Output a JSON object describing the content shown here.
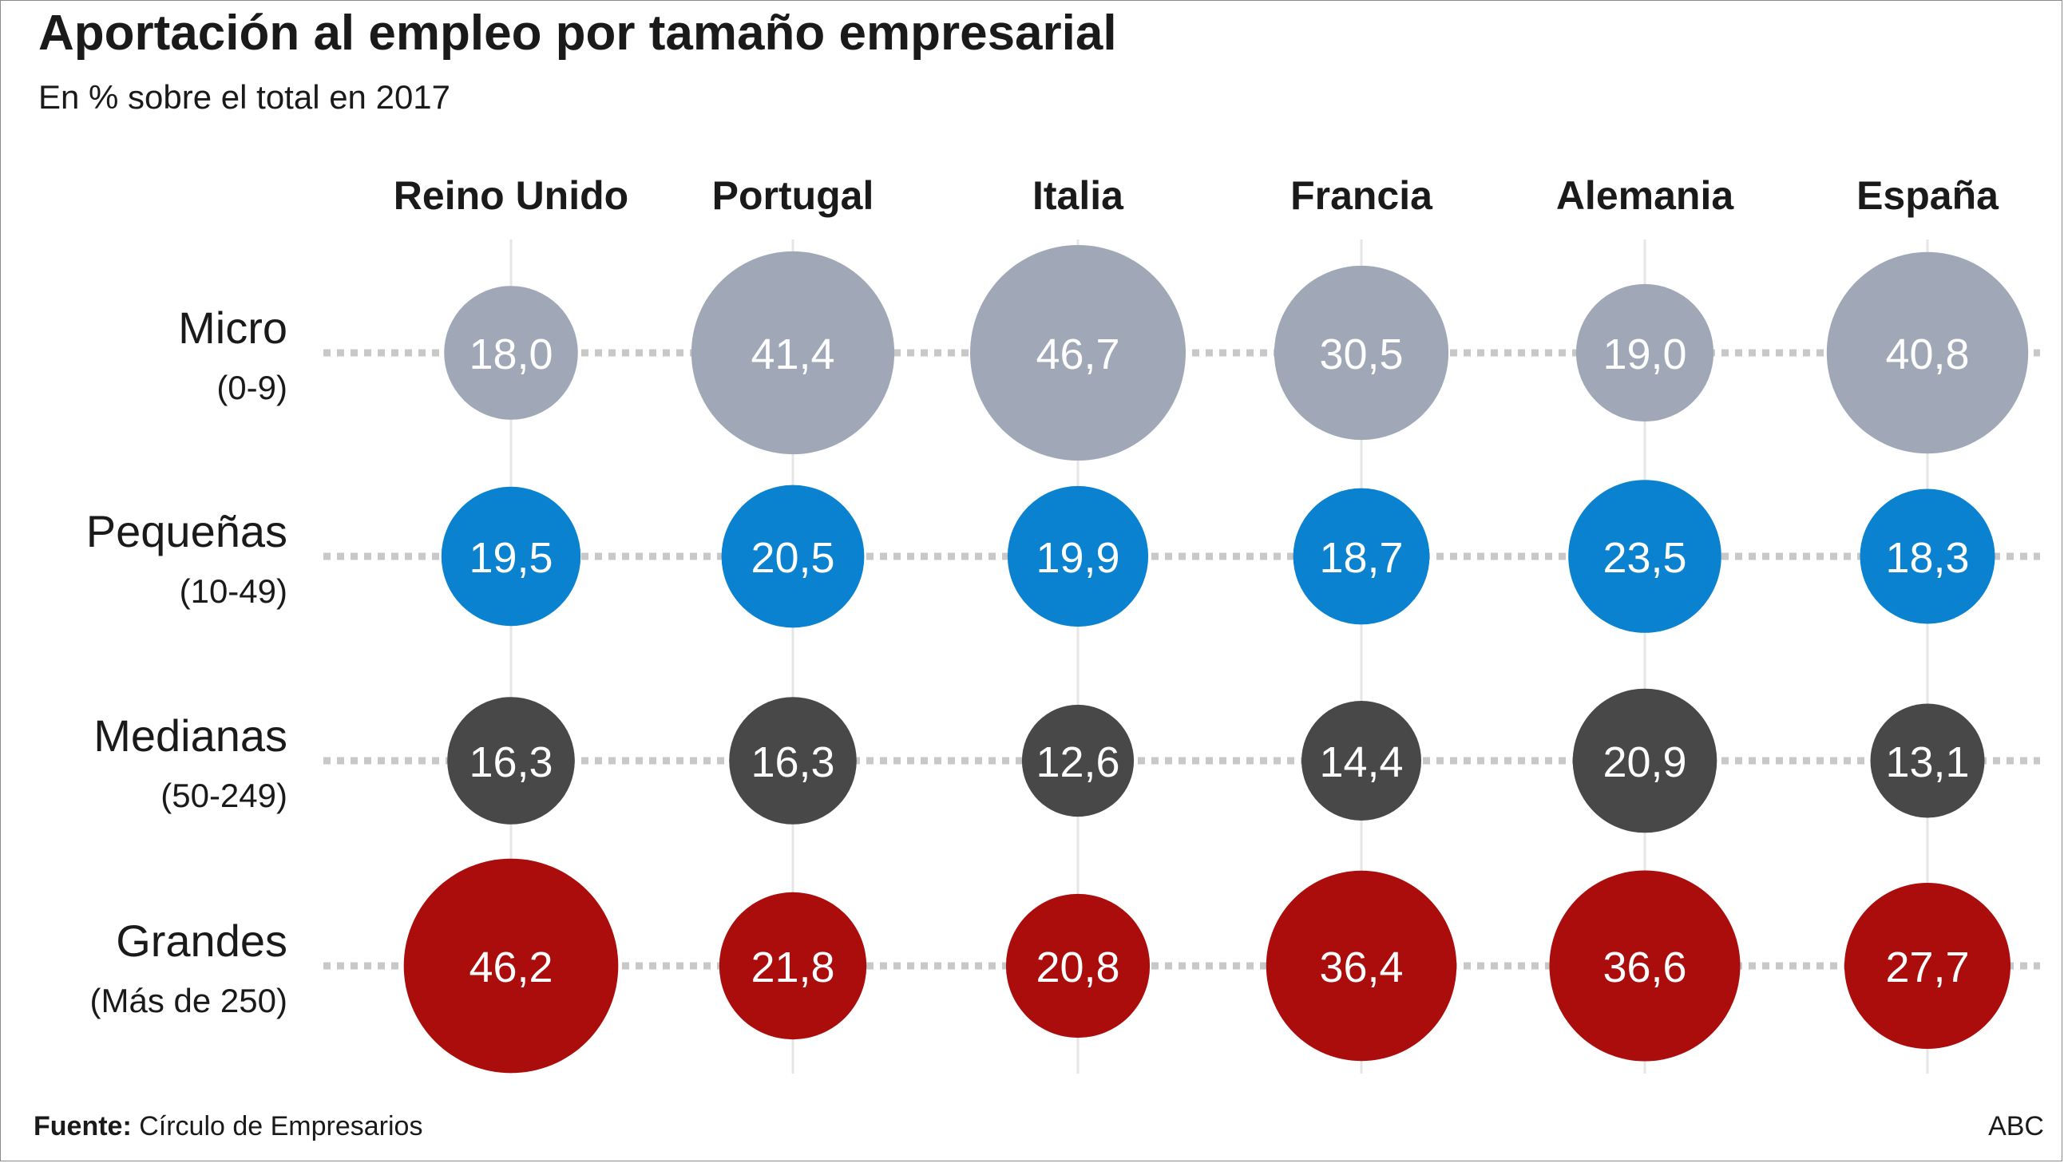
{
  "colors": {
    "micro": "#a0a8b7",
    "pequenas": "#0b82cf",
    "medianas": "#484848",
    "grandes": "#ab0d0d",
    "grid": "#e6e6e6",
    "dots": "#c8c8c8"
  },
  "chart_data": {
    "type": "bubble-matrix",
    "title": "Aportación al empleo por tamaño empresarial",
    "subtitle": "En % sobre el total en 2017",
    "columns": [
      "Reino Unido",
      "Portugal",
      "Italia",
      "Francia",
      "Alemania",
      "España"
    ],
    "rows": [
      {
        "key": "micro",
        "name": "Micro",
        "range": "(0-9)",
        "values": [
          18.0,
          41.4,
          46.7,
          30.5,
          19.0,
          40.8
        ],
        "labels": [
          "18,0",
          "41,4",
          "46,7",
          "30,5",
          "19,0",
          "40,8"
        ]
      },
      {
        "key": "pequenas",
        "name": "Pequeñas",
        "range": "(10-49)",
        "values": [
          19.5,
          20.5,
          19.9,
          18.7,
          23.5,
          18.3
        ],
        "labels": [
          "19,5",
          "20,5",
          "19,9",
          "18,7",
          "23,5",
          "18,3"
        ]
      },
      {
        "key": "medianas",
        "name": "Medianas",
        "range": "(50-249)",
        "values": [
          16.3,
          16.3,
          12.6,
          14.4,
          20.9,
          13.1
        ],
        "labels": [
          "16,3",
          "16,3",
          "12,6",
          "14,4",
          "20,9",
          "13,1"
        ]
      },
      {
        "key": "grandes",
        "name": "Grandes",
        "range": "(Más de 250)",
        "values": [
          46.2,
          21.8,
          20.8,
          36.4,
          36.6,
          27.7
        ],
        "labels": [
          "46,2",
          "21,8",
          "20,8",
          "36,4",
          "36,6",
          "27,7"
        ]
      }
    ]
  },
  "footer": {
    "source_label": "Fuente:",
    "source_text": " Círculo de Empresarios",
    "credit": "ABC"
  }
}
